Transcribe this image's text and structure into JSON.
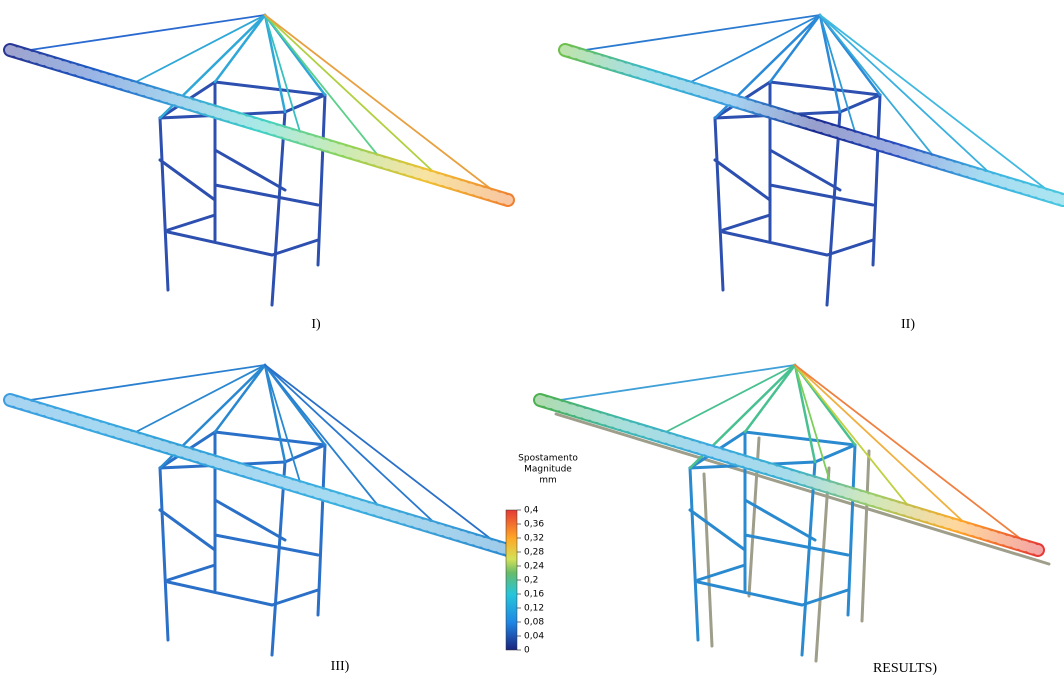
{
  "panels": [
    {
      "label": "I)"
    },
    {
      "label": "II)"
    },
    {
      "label": "III)"
    },
    {
      "label": "RESULTS)"
    }
  ],
  "colorbar": {
    "title": [
      "Spostamento",
      "Magnitude",
      "mm"
    ],
    "ticks": [
      {
        "value": 0.4,
        "label": "0,4"
      },
      {
        "value": 0.36,
        "label": "0,36"
      },
      {
        "value": 0.32,
        "label": "0,32"
      },
      {
        "value": 0.28,
        "label": "0,28"
      },
      {
        "value": 0.24,
        "label": "0,24"
      },
      {
        "value": 0.2,
        "label": "0,2"
      },
      {
        "value": 0.16,
        "label": "0,16"
      },
      {
        "value": 0.12,
        "label": "0,12"
      },
      {
        "value": 0.08,
        "label": "0,08"
      },
      {
        "value": 0.04,
        "label": "0,04"
      },
      0
    ]
  }
}
